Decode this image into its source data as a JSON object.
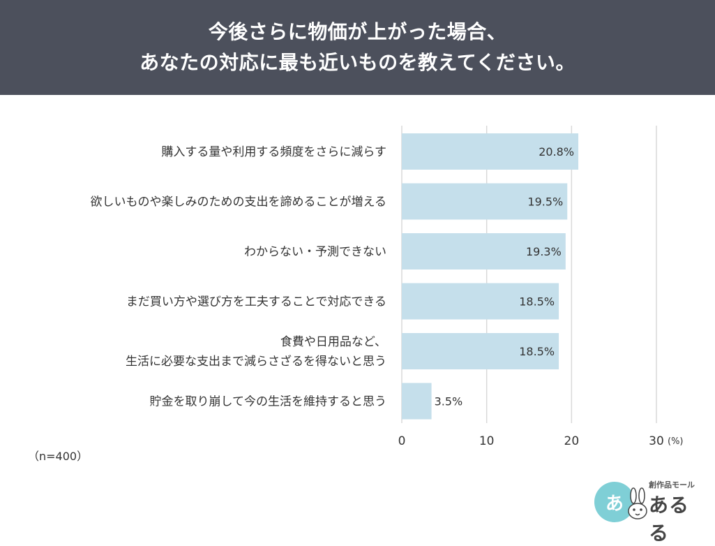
{
  "header": {
    "title_line1": "今後さらに物価が上がった場合、",
    "title_line2": "あなたの対応に最も近いものを教えてください。"
  },
  "chart_data": {
    "type": "bar",
    "orientation": "horizontal",
    "categories": [
      [
        "購入する量や利用する頻度をさらに減らす"
      ],
      [
        "欲しいものや楽しみのための支出を諦めることが増える"
      ],
      [
        "わからない・予測できない"
      ],
      [
        "まだ買い方や選び方を工夫することで対応できる"
      ],
      [
        "食費や日用品など、",
        "生活に必要な支出まで減らさざるを得ないと思う"
      ],
      [
        "貯金を取り崩して今の生活を維持すると思う"
      ]
    ],
    "values": [
      20.8,
      19.5,
      19.3,
      18.5,
      18.5,
      3.5
    ],
    "value_labels": [
      "20.8%",
      "19.5%",
      "19.3%",
      "18.5%",
      "18.5%",
      "3.5%"
    ],
    "xlim": [
      0,
      30
    ],
    "ticks": [
      0,
      10,
      20,
      30
    ],
    "tick_labels": [
      "0",
      "10",
      "20",
      "30"
    ],
    "unit_label": "(%)",
    "grid": true,
    "bar_color": "#c5dfeb",
    "grid_color": "#d9d9d9",
    "text_color": "#333333"
  },
  "note": "（n=400）",
  "logo": {
    "mark": "あ",
    "subtitle": "創作品モール",
    "name": "あるる"
  }
}
